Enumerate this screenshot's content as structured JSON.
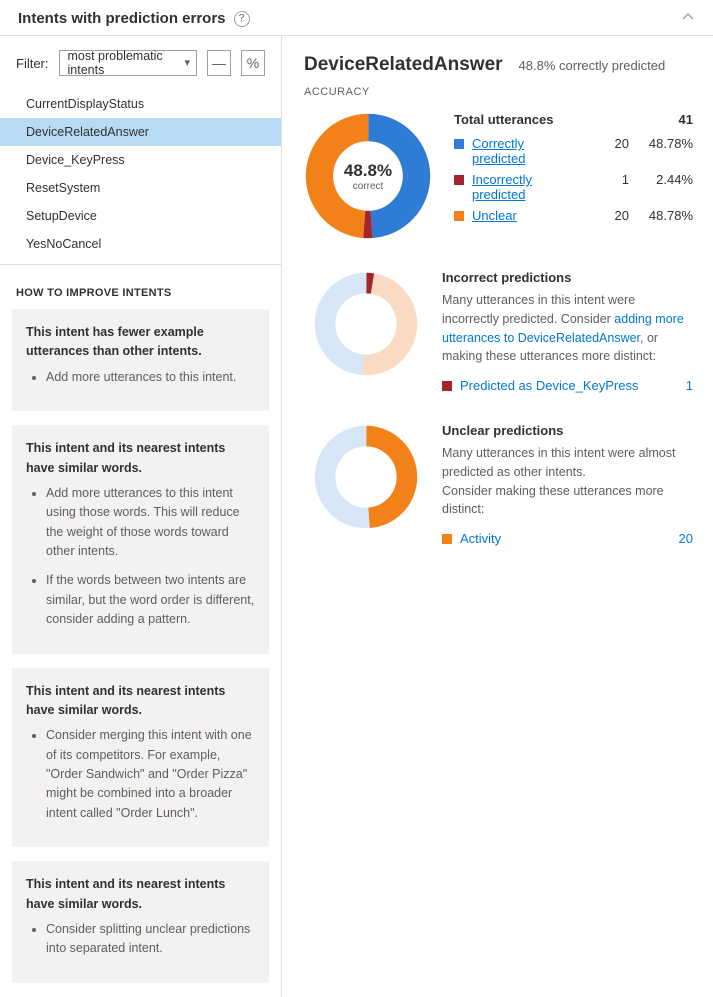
{
  "header": {
    "title": "Intents with prediction errors"
  },
  "filter": {
    "label": "Filter:",
    "selected": "most problematic intents",
    "dashBtn": "—",
    "pctBtn": "%"
  },
  "intents": [
    {
      "name": "CurrentDisplayStatus",
      "selected": false
    },
    {
      "name": "DeviceRelatedAnswer",
      "selected": true
    },
    {
      "name": "Device_KeyPress",
      "selected": false
    },
    {
      "name": "ResetSystem",
      "selected": false
    },
    {
      "name": "SetupDevice",
      "selected": false
    },
    {
      "name": "YesNoCancel",
      "selected": false
    }
  ],
  "improve": {
    "heading": "HOW TO IMPROVE INTENTS",
    "tips": [
      {
        "title": "This intent has fewer example utterances than other intents.",
        "bullets": [
          "Add more utterances to this intent."
        ]
      },
      {
        "title": "This intent and its nearest intents have similar words.",
        "bullets": [
          "Add more utterances to this intent using those words. This will reduce the weight of those words toward other intents.",
          "If the words between two intents are similar, but the word order is different, consider adding a pattern."
        ]
      },
      {
        "title": "This intent and its nearest intents have similar words.",
        "bullets": [
          "Consider merging this intent with one of its competitors. For example, \"Order Sandwich\" and \"Order Pizza\" might be combined into a broader intent called \"Order Lunch\"."
        ]
      },
      {
        "title": "This intent and its nearest intents have similar words.",
        "bullets": [
          "Consider splitting unclear predictions into separated intent."
        ]
      }
    ]
  },
  "detail": {
    "intentName": "DeviceRelatedAnswer",
    "subhead": "48.8% correctly predicted",
    "accuracyLabel": "ACCURACY",
    "donut": {
      "centerBig": "48.8%",
      "centerSmall": "correct",
      "segments": [
        {
          "label": "Correctly predicted",
          "count": 20,
          "pct": 48.78,
          "color": "#2f7cd6"
        },
        {
          "label": "Incorrectly predicted",
          "count": 1,
          "pct": 2.44,
          "color": "#a4262c"
        },
        {
          "label": "Unclear",
          "count": 20,
          "pct": 48.78,
          "color": "#f2811a"
        }
      ],
      "totalLabel": "Total utterances",
      "totalCount": 41
    },
    "incorrect": {
      "title": "Incorrect predictions",
      "text1": "Many utterances in this intent were incorrectly predicted. Consider ",
      "linkText": "adding more utterances to DeviceRelatedAnswer",
      "text2": ", or making these utterances more distinct:",
      "donutSegments": [
        {
          "color": "#a4262c",
          "pct": 2.44
        },
        {
          "color": "#f9dbc3",
          "pct": 48.78
        },
        {
          "color": "#d6e6f7",
          "pct": 48.78
        }
      ],
      "rows": [
        {
          "label": "Predicted as Device_KeyPress",
          "count": 1,
          "color": "#a4262c"
        }
      ]
    },
    "unclear": {
      "title": "Unclear predictions",
      "text1": "Many utterances in this intent were almost predicted as other intents.",
      "text2": "Consider making these utterances more distinct:",
      "donutSegments": [
        {
          "color": "#f2811a",
          "pct": 48.78
        },
        {
          "color": "#d6e6f7",
          "pct": 51.22
        }
      ],
      "rows": [
        {
          "label": "Activity",
          "count": 20,
          "color": "#f2811a"
        }
      ]
    }
  },
  "colors": {
    "link": "#0078d4"
  }
}
